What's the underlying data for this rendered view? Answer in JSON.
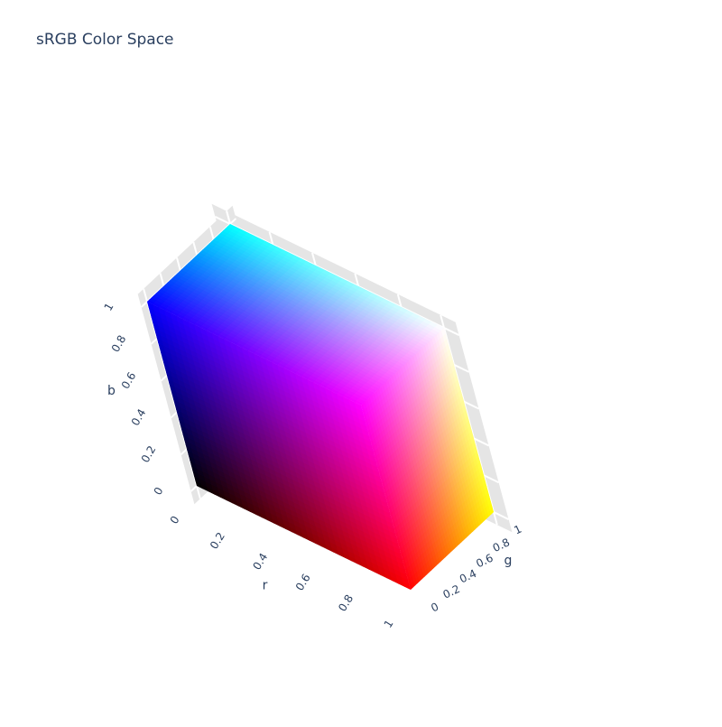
{
  "chart_data": {
    "type": "3d-surface",
    "title": "sRGB Color Space",
    "axes": {
      "r": {
        "title": "r",
        "range": [
          0,
          1
        ],
        "tick_labels": [
          "0",
          "0.2",
          "0.4",
          "0.6",
          "0.8",
          "1"
        ]
      },
      "g": {
        "title": "g",
        "range": [
          0,
          1
        ],
        "tick_labels": [
          "0",
          "0.2",
          "0.4",
          "0.6",
          "0.8",
          "1"
        ]
      },
      "b": {
        "title": "b",
        "range": [
          0,
          1
        ],
        "tick_labels": [
          "0",
          "0.2",
          "0.4",
          "0.6",
          "0.8",
          "1"
        ]
      }
    },
    "corners": [
      {
        "r": 0,
        "g": 0,
        "b": 0,
        "color": "#000000"
      },
      {
        "r": 1,
        "g": 0,
        "b": 0,
        "color": "#ff0000"
      },
      {
        "r": 0,
        "g": 1,
        "b": 0,
        "color": "#00ff00"
      },
      {
        "r": 0,
        "g": 0,
        "b": 1,
        "color": "#0000ff"
      },
      {
        "r": 1,
        "g": 1,
        "b": 0,
        "color": "#ffff00"
      },
      {
        "r": 1,
        "g": 0,
        "b": 1,
        "color": "#ff00ff"
      },
      {
        "r": 0,
        "g": 1,
        "b": 1,
        "color": "#00ffff"
      },
      {
        "r": 1,
        "g": 1,
        "b": 1,
        "color": "#ffffff"
      }
    ],
    "visible_faces": [
      "b=1",
      "g=0",
      "r=1"
    ],
    "grid": true,
    "colors": {
      "text": "#2a3f5f",
      "wall": "#e5e5e5",
      "gridline": "#ffffff"
    }
  }
}
